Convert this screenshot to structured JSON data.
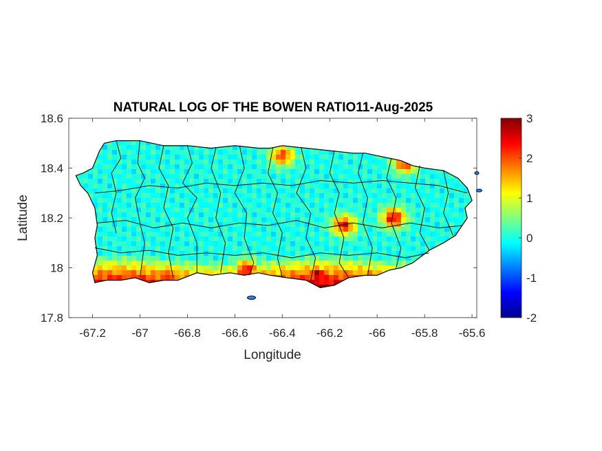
{
  "chart_data": {
    "type": "heatmap",
    "title": "NATURAL LOG OF THE BOWEN RATIO11-Aug-2025",
    "xlabel": "Longitude",
    "ylabel": "Latitude",
    "xlim": [
      -67.3,
      -65.58
    ],
    "ylim": [
      17.8,
      18.6
    ],
    "x_ticks": [
      -67.2,
      -67,
      -66.8,
      -66.6,
      -66.4,
      -66.2,
      -66,
      -65.8,
      -65.6
    ],
    "x_tick_labels": [
      "-67.2",
      "-67",
      "-66.8",
      "-66.6",
      "-66.4",
      "-66.2",
      "-66",
      "-65.8",
      "-65.6"
    ],
    "y_ticks": [
      17.8,
      18,
      18.2,
      18.4,
      18.6
    ],
    "y_tick_labels": [
      "17.8",
      "18",
      "18.2",
      "18.4",
      "18.6"
    ],
    "colorbar": {
      "colormap": "jet",
      "clim": [
        -2,
        3
      ],
      "ticks": [
        -2,
        -1,
        0,
        1,
        2,
        3
      ],
      "tick_labels": [
        "-2",
        "-1",
        "0",
        "1",
        "2",
        "3"
      ]
    },
    "region": "Puerto Rico",
    "pattern": {
      "interior_typical_value_range": [
        -1.2,
        0.2
      ],
      "high_values_south_coast_range": [
        1.5,
        3
      ],
      "high_value_hotspots": [
        {
          "lon": -66.14,
          "lat": 18.17,
          "value": 2.4
        },
        {
          "lon": -65.93,
          "lat": 18.2,
          "value": 2.5
        },
        {
          "lon": -65.88,
          "lat": 18.42,
          "value": 2.2
        },
        {
          "lon": -66.4,
          "lat": 18.45,
          "value": 2.1
        },
        {
          "lon": -66.55,
          "lat": 17.99,
          "value": 2.5
        },
        {
          "lon": -66.25,
          "lat": 17.97,
          "value": 2.8
        },
        {
          "lon": -66.88,
          "lat": 17.97,
          "value": 2.2
        }
      ]
    },
    "grid": false
  }
}
